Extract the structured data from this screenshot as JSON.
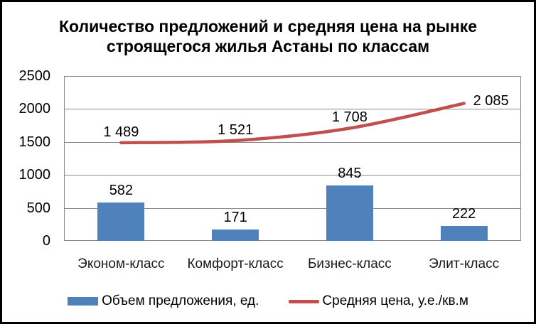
{
  "window": {
    "background": "#ffffff",
    "frame_border_color": "#000000"
  },
  "chart_data": {
    "type": "bar+line",
    "title": "Количество предложений и средняя цена на рынке строящегося жилья Астаны по классам",
    "title_line1": "Количество предложений и средняя цена на рынке",
    "title_line2": "строящегося жилья Астаны по классам",
    "categories": [
      "Эконом-класс",
      "Комфорт-класс",
      "Бизнес-класс",
      "Элит-класс"
    ],
    "series": [
      {
        "name": "Объем предложения, ед.",
        "type": "bar",
        "color": "#4F81BD",
        "values": [
          582,
          171,
          845,
          222
        ],
        "labels": [
          "582",
          "171",
          "845",
          "222"
        ]
      },
      {
        "name": "Средняя цена, у.е./кв.м",
        "type": "line",
        "color": "#C0504D",
        "values": [
          1489,
          1521,
          1708,
          2085
        ],
        "labels": [
          "1 489",
          "1 521",
          "1 708",
          "2 085"
        ]
      }
    ],
    "y_axis": {
      "min": 0,
      "max": 2500,
      "step": 500,
      "ticks_top_to_bottom": [
        "2500",
        "2000",
        "1500",
        "1000",
        "500",
        "0"
      ]
    },
    "x_axis_label": "",
    "y_axis_label": "",
    "grid": true,
    "legend_position": "bottom",
    "gridline_color": "#8a8a8a",
    "text_color": "#000000"
  }
}
